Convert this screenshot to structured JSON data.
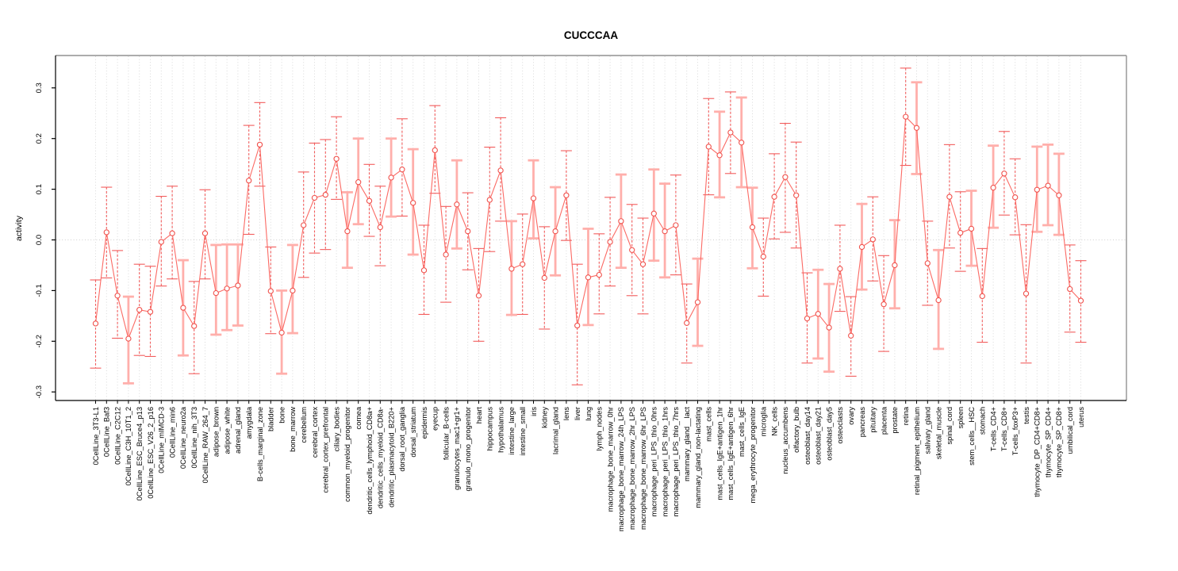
{
  "figure": {
    "title": "CUCCCAA",
    "ylabel": "activity",
    "background": "#ffffff"
  },
  "chart_data": {
    "type": "line",
    "title": "CUCCCAA",
    "xlabel": "",
    "ylabel": "activity",
    "ylim": [
      -0.3,
      0.36
    ],
    "yticks": [
      -0.3,
      -0.2,
      -0.1,
      0.0,
      0.1,
      0.2,
      0.3
    ],
    "grid": "vertical-dotted-per-category, dotted-zero-line",
    "legend": "none",
    "marker": "open-circle",
    "colors": {
      "point_stroke": "#f0524d",
      "line": "#fb6a64",
      "error_bar_thin": "#f25c5c",
      "error_bar_pale": "#ffafab",
      "gridline": "#d9d9d9",
      "zero_line": "#cfcfcf",
      "frame_topright": "#919191",
      "axis": "#000000"
    },
    "point_format": [
      "label",
      "value",
      "lo",
      "hi",
      "pale_errorbar"
    ],
    "points": [
      [
        "0CellLine_3T3-L1",
        -0.165,
        -0.253,
        -0.079,
        0
      ],
      [
        "0CellLine_Baf3",
        0.015,
        -0.075,
        0.104,
        0
      ],
      [
        "0CellLine_C2C12",
        -0.11,
        -0.194,
        -0.021,
        0
      ],
      [
        "0CellLine_C3H_10T1_2",
        -0.195,
        -0.283,
        -0.112,
        1
      ],
      [
        "0CellLine_ESC_Bruce4_p13",
        -0.138,
        -0.228,
        -0.048,
        0
      ],
      [
        "0CellLine_ESC_V26_2_p16",
        -0.142,
        -0.23,
        -0.052,
        0
      ],
      [
        "0CellLine_mIMCD-3",
        -0.004,
        -0.091,
        0.086,
        0
      ],
      [
        "0CellLine_min6",
        0.013,
        -0.077,
        0.106,
        0
      ],
      [
        "0CellLine_neuro2a",
        -0.134,
        -0.228,
        -0.04,
        1
      ],
      [
        "0CellLine_nih_3T3",
        -0.17,
        -0.264,
        -0.082,
        0
      ],
      [
        "0CellLine_RAW_264_7",
        0.013,
        -0.077,
        0.099,
        0
      ],
      [
        "adipose_brown",
        -0.105,
        -0.187,
        -0.01,
        1
      ],
      [
        "adipose_white",
        -0.096,
        -0.178,
        -0.009,
        1
      ],
      [
        "adrenal_gland",
        -0.09,
        -0.169,
        -0.009,
        1
      ],
      [
        "amygdala",
        0.117,
        0.011,
        0.226,
        0
      ],
      [
        "B-cells_marginal_zone",
        0.188,
        0.106,
        0.271,
        0
      ],
      [
        "bladder",
        -0.101,
        -0.185,
        -0.014,
        0
      ],
      [
        "bone",
        -0.183,
        -0.264,
        -0.1,
        1
      ],
      [
        "bone_marrow",
        -0.1,
        -0.184,
        -0.01,
        1
      ],
      [
        "cerebellum",
        0.029,
        -0.074,
        0.134,
        0
      ],
      [
        "cerebral_cortex",
        0.083,
        -0.026,
        0.191,
        0
      ],
      [
        "cerebral_cortex_prefrontal",
        0.089,
        -0.019,
        0.198,
        0
      ],
      [
        "ciliary_bodies",
        0.16,
        0.08,
        0.243,
        0
      ],
      [
        "common_myeloid_progenitor",
        0.017,
        -0.055,
        0.094,
        1
      ],
      [
        "cornea",
        0.114,
        0.031,
        0.2,
        1
      ],
      [
        "dendritic_cells_lymphoid_CD8a+",
        0.077,
        0.007,
        0.149,
        0
      ],
      [
        "dendritic_cells_myeloid_CD8a-",
        0.025,
        -0.051,
        0.106,
        0
      ],
      [
        "dendritic_plasmacytoid_B220+",
        0.123,
        0.046,
        0.2,
        1
      ],
      [
        "dorsal_root_ganglia",
        0.139,
        0.047,
        0.239,
        0
      ],
      [
        "dorsal_striatum",
        0.073,
        -0.029,
        0.179,
        1
      ],
      [
        "epidermis",
        -0.06,
        -0.147,
        0.029,
        0
      ],
      [
        "eyecup",
        0.177,
        0.092,
        0.265,
        0
      ],
      [
        "follicular_B-cells",
        -0.029,
        -0.123,
        0.066,
        0
      ],
      [
        "granulocytes_mac1+gr1+",
        0.07,
        -0.017,
        0.157,
        1
      ],
      [
        "granulo_mono_progenitor",
        0.017,
        -0.059,
        0.093,
        0
      ],
      [
        "heart",
        -0.11,
        -0.2,
        -0.017,
        0
      ],
      [
        "hippocampus",
        0.079,
        -0.023,
        0.183,
        0
      ],
      [
        "hypothalamus",
        0.137,
        0.037,
        0.241,
        0
      ],
      [
        "intestine_large",
        -0.057,
        -0.148,
        0.037,
        1
      ],
      [
        "intestine_small",
        -0.048,
        -0.147,
        0.051,
        0
      ],
      [
        "iris",
        0.082,
        0.003,
        0.157,
        1
      ],
      [
        "kidney",
        -0.075,
        -0.176,
        0.026,
        0
      ],
      [
        "lacrimal_gland",
        0.017,
        -0.07,
        0.104,
        1
      ],
      [
        "lens",
        0.088,
        -0.001,
        0.176,
        0
      ],
      [
        "liver",
        -0.169,
        -0.286,
        -0.048,
        0
      ],
      [
        "lung",
        -0.074,
        -0.168,
        0.022,
        1
      ],
      [
        "lymph_nodes",
        -0.069,
        -0.146,
        0.012,
        0
      ],
      [
        "macrophage_bone_marrow_0hr",
        -0.004,
        -0.091,
        0.084,
        0
      ],
      [
        "macrophage_bone_marrow_24h_LPS",
        0.037,
        -0.055,
        0.129,
        1
      ],
      [
        "macrophage_bone_marrow_2hr_LPS",
        -0.02,
        -0.11,
        0.07,
        0
      ],
      [
        "macrophage_bone_marrow_6hr_LPS",
        -0.048,
        -0.146,
        0.043,
        0
      ],
      [
        "macrophage_peri_LPS_thio_0hrs",
        0.052,
        -0.041,
        0.139,
        1
      ],
      [
        "macrophage_peri_LPS_thio_1hrs",
        0.017,
        -0.074,
        0.111,
        1
      ],
      [
        "macrophage_peri_LPS_thio_7hrs",
        0.029,
        -0.069,
        0.128,
        0
      ],
      [
        "mammary_gland__lact",
        -0.164,
        -0.243,
        -0.087,
        0
      ],
      [
        "mammary_gland_non-lactating",
        -0.123,
        -0.209,
        -0.037,
        1
      ],
      [
        "mast_cells",
        0.184,
        0.089,
        0.279,
        0
      ],
      [
        "mast_cells_IgE+antigen_1hr",
        0.167,
        0.084,
        0.253,
        1
      ],
      [
        "mast_cells_IgE+antigen_6hr",
        0.212,
        0.131,
        0.292,
        0
      ],
      [
        "mast_cells_IgE",
        0.192,
        0.104,
        0.281,
        1
      ],
      [
        "mega_erythrocyte_progenitor",
        0.025,
        -0.056,
        0.103,
        1
      ],
      [
        "microglia",
        -0.033,
        -0.111,
        0.043,
        0
      ],
      [
        "NK_cells",
        0.085,
        0.002,
        0.17,
        0
      ],
      [
        "nucleus_accumbens",
        0.124,
        0.015,
        0.23,
        0
      ],
      [
        "olfactory_bulb",
        0.088,
        -0.016,
        0.193,
        0
      ],
      [
        "osteoblast_day14",
        -0.155,
        -0.243,
        -0.065,
        0
      ],
      [
        "osteoblast_day21",
        -0.146,
        -0.234,
        -0.059,
        1
      ],
      [
        "osteoblast_day5",
        -0.173,
        -0.26,
        -0.087,
        1
      ],
      [
        "osteoclasts",
        -0.057,
        -0.141,
        0.029,
        0
      ],
      [
        "ovary",
        -0.189,
        -0.269,
        -0.112,
        0
      ],
      [
        "pancreas",
        -0.014,
        -0.098,
        0.071,
        1
      ],
      [
        "pituitary",
        0.001,
        -0.081,
        0.085,
        0
      ],
      [
        "placenta",
        -0.127,
        -0.22,
        -0.031,
        0
      ],
      [
        "prostate",
        -0.05,
        -0.135,
        0.039,
        1
      ],
      [
        "retina",
        0.243,
        0.147,
        0.339,
        0
      ],
      [
        "retinal_pigment_epithelium",
        0.221,
        0.13,
        0.311,
        1
      ],
      [
        "salivary_gland",
        -0.046,
        -0.129,
        0.037,
        0
      ],
      [
        "skeletal_muscle",
        -0.119,
        -0.215,
        -0.02,
        1
      ],
      [
        "spinal_cord",
        0.085,
        -0.016,
        0.188,
        0
      ],
      [
        "spleen",
        0.014,
        -0.062,
        0.095,
        0
      ],
      [
        "stem_cells__HSC",
        0.022,
        -0.051,
        0.097,
        1
      ],
      [
        "stomach",
        -0.111,
        -0.202,
        -0.017,
        0
      ],
      [
        "T-cells_CD4+",
        0.103,
        0.024,
        0.186,
        1
      ],
      [
        "T-cells_CD8+",
        0.131,
        0.049,
        0.214,
        0
      ],
      [
        "T-cells_foxP3+",
        0.084,
        0.01,
        0.16,
        0
      ],
      [
        "testis",
        -0.106,
        -0.243,
        0.03,
        0
      ],
      [
        "thymocyte_DP_CD4+CD8+",
        0.099,
        0.016,
        0.184,
        1
      ],
      [
        "thymocyte_SP_CD4+",
        0.107,
        0.029,
        0.188,
        1
      ],
      [
        "thymocyte_SP_CD8+",
        0.088,
        0.01,
        0.17,
        1
      ],
      [
        "umbilical_cord",
        -0.097,
        -0.182,
        -0.01,
        0
      ],
      [
        "uterus",
        -0.12,
        -0.202,
        -0.041,
        0
      ]
    ]
  }
}
